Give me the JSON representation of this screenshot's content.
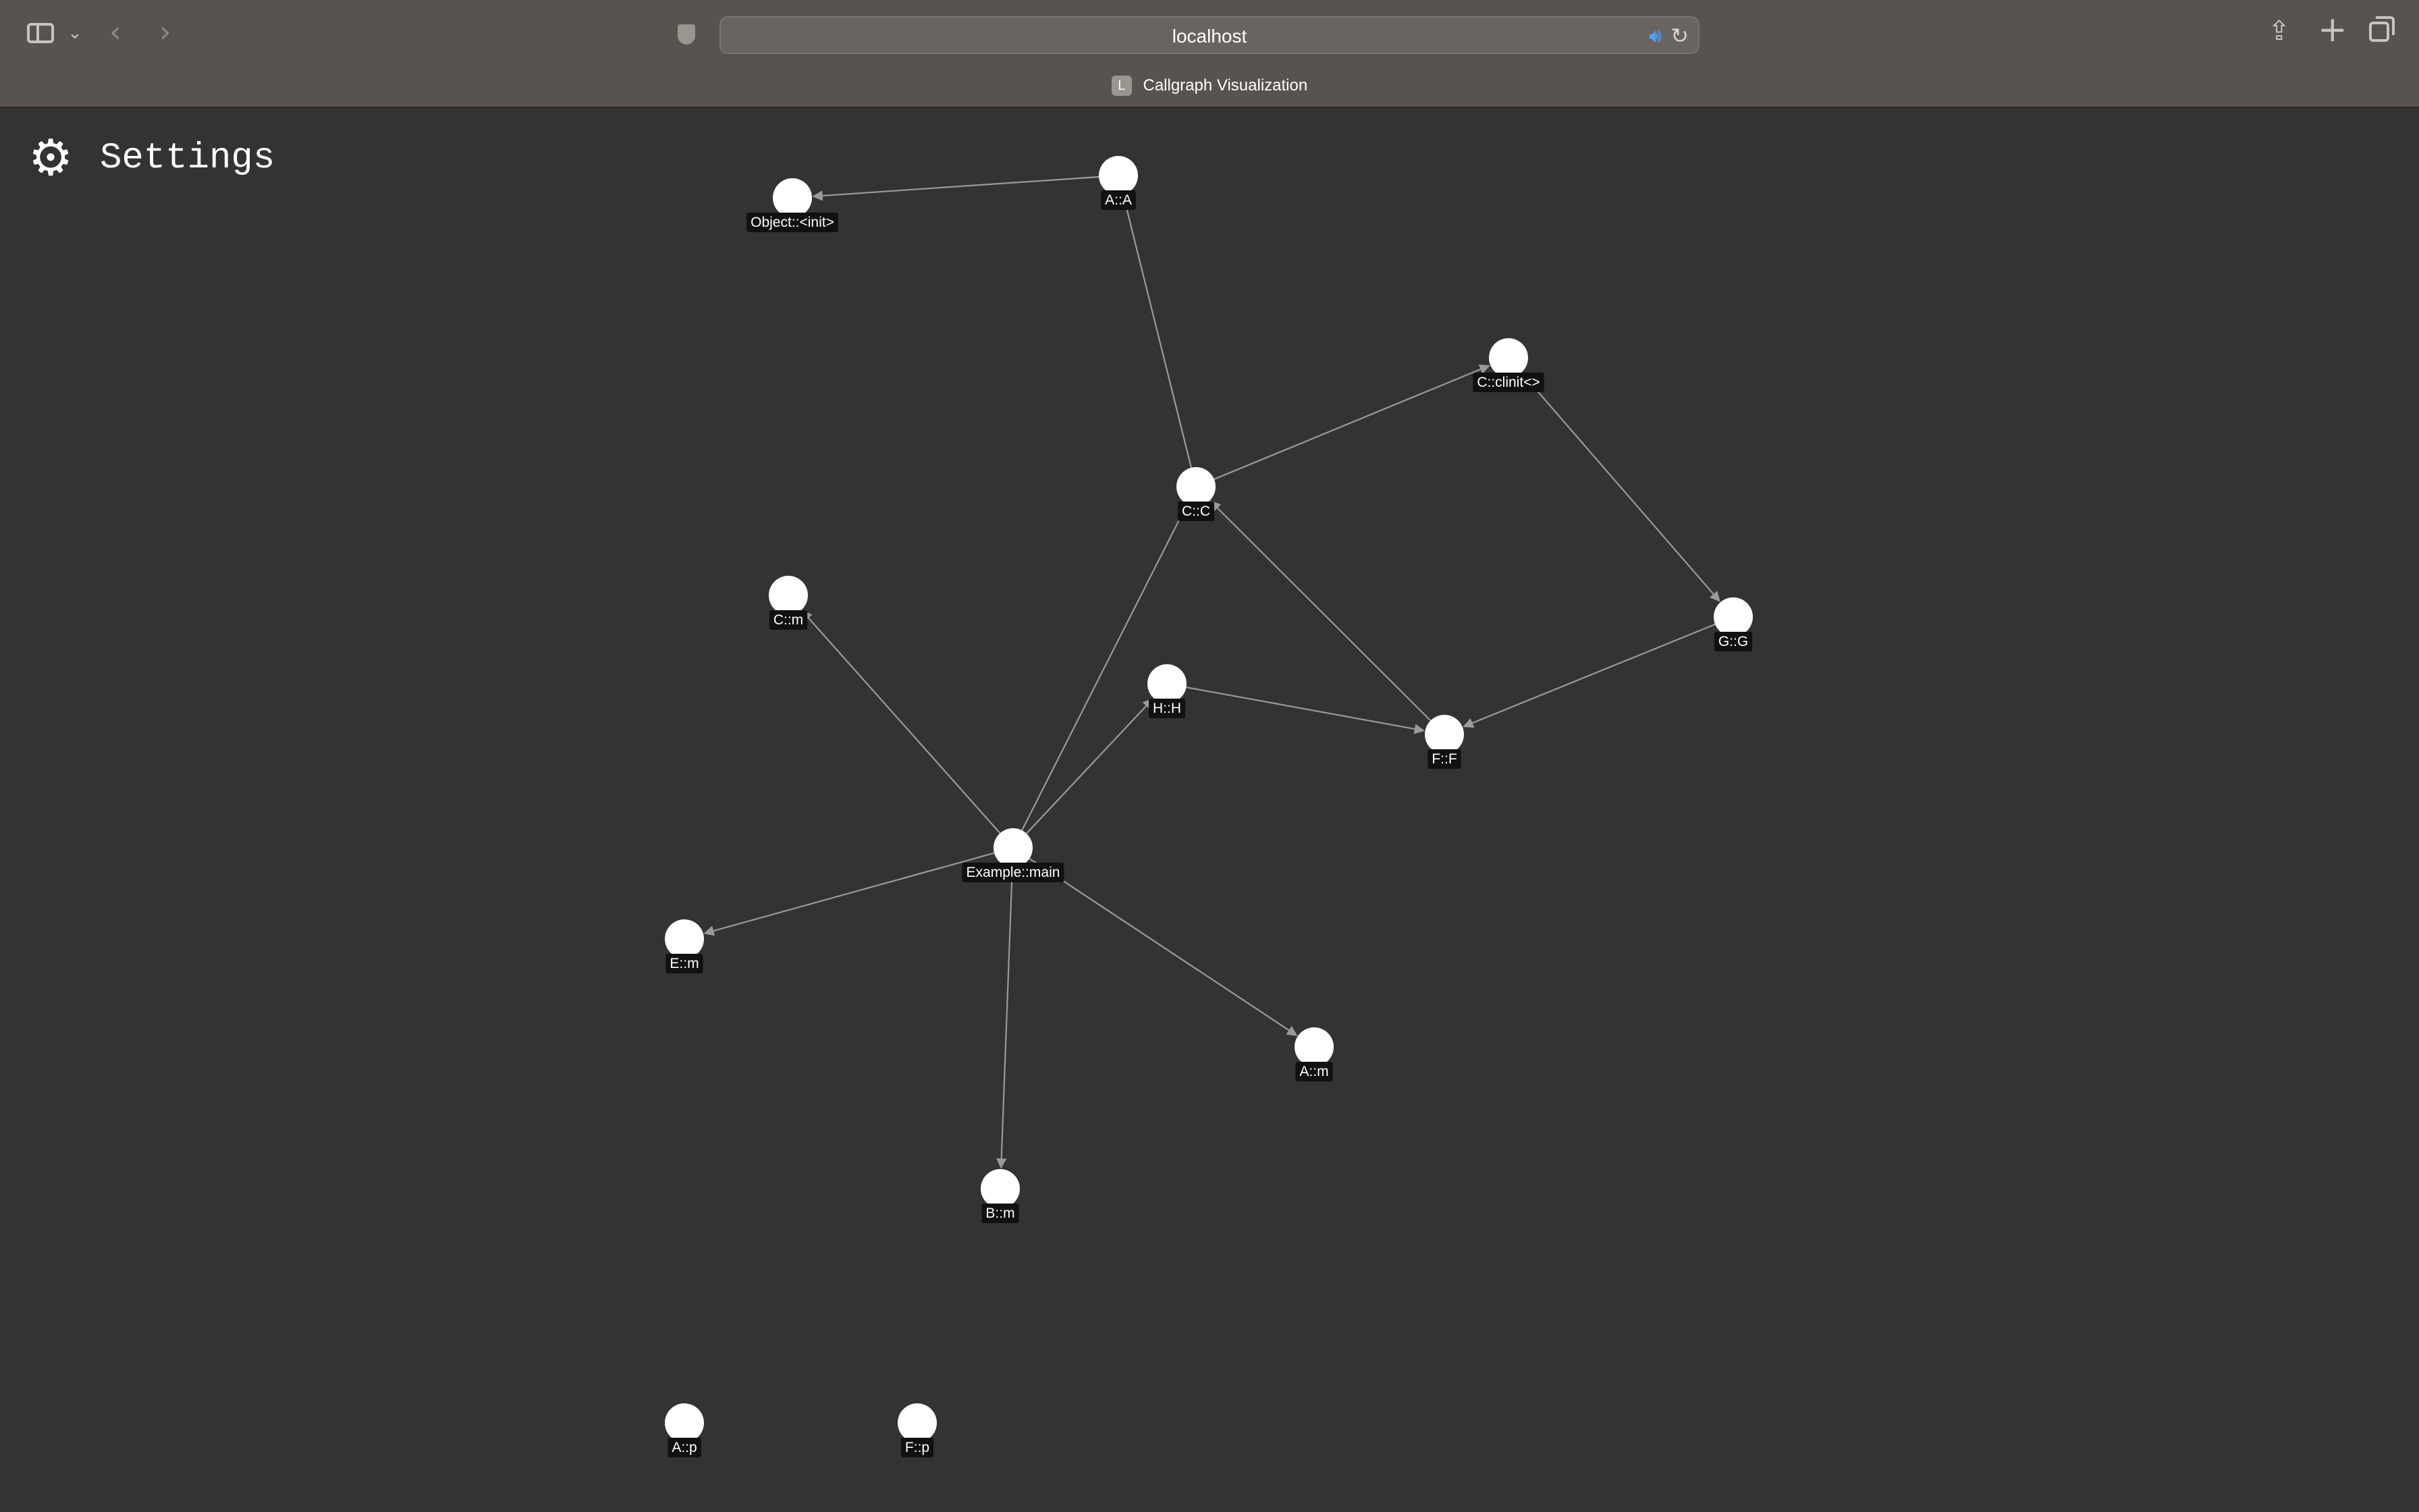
{
  "browser": {
    "address": "localhost",
    "tab_title": "Callgraph Visualization",
    "tab_favicon": "L"
  },
  "settings": {
    "label": "Settings",
    "icon": "gear-icon"
  },
  "graph": {
    "nodes": [
      {
        "id": "object_init",
        "label": "Object::<init>"
      },
      {
        "id": "a_a",
        "label": "A::A"
      },
      {
        "id": "c_clinit",
        "label": "C::clinit<>"
      },
      {
        "id": "c_c",
        "label": "C::C"
      },
      {
        "id": "c_m",
        "label": "C::m"
      },
      {
        "id": "g_g",
        "label": "G::G"
      },
      {
        "id": "h_h",
        "label": "H::H"
      },
      {
        "id": "f_f",
        "label": "F::F"
      },
      {
        "id": "example_main",
        "label": "Example::main"
      },
      {
        "id": "e_m",
        "label": "E::m"
      },
      {
        "id": "a_m",
        "label": "A::m"
      },
      {
        "id": "b_m",
        "label": "B::m"
      },
      {
        "id": "a_p",
        "label": "A::p"
      },
      {
        "id": "f_p",
        "label": "F::p"
      }
    ],
    "edges": [
      {
        "from": "a_a",
        "to": "object_init"
      },
      {
        "from": "c_c",
        "to": "a_a"
      },
      {
        "from": "c_c",
        "to": "c_clinit"
      },
      {
        "from": "c_clinit",
        "to": "g_g"
      },
      {
        "from": "g_g",
        "to": "f_f"
      },
      {
        "from": "f_f",
        "to": "c_c"
      },
      {
        "from": "h_h",
        "to": "f_f"
      },
      {
        "from": "example_main",
        "to": "c_c"
      },
      {
        "from": "example_main",
        "to": "c_m"
      },
      {
        "from": "example_main",
        "to": "h_h"
      },
      {
        "from": "example_main",
        "to": "e_m"
      },
      {
        "from": "example_main",
        "to": "a_m"
      },
      {
        "from": "example_main",
        "to": "b_m"
      }
    ]
  }
}
